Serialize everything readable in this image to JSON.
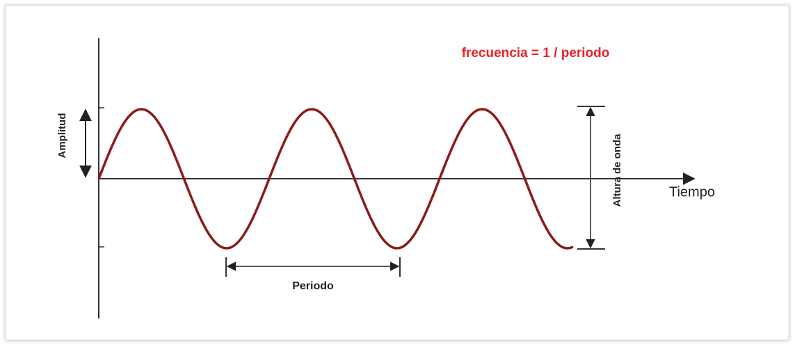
{
  "formula": "frecuencia = 1 / periodo",
  "amplitude_label": "Amplitud",
  "height_label": "Altura de onda",
  "time_label": "Tiempo",
  "period_label": "Periodo"
}
